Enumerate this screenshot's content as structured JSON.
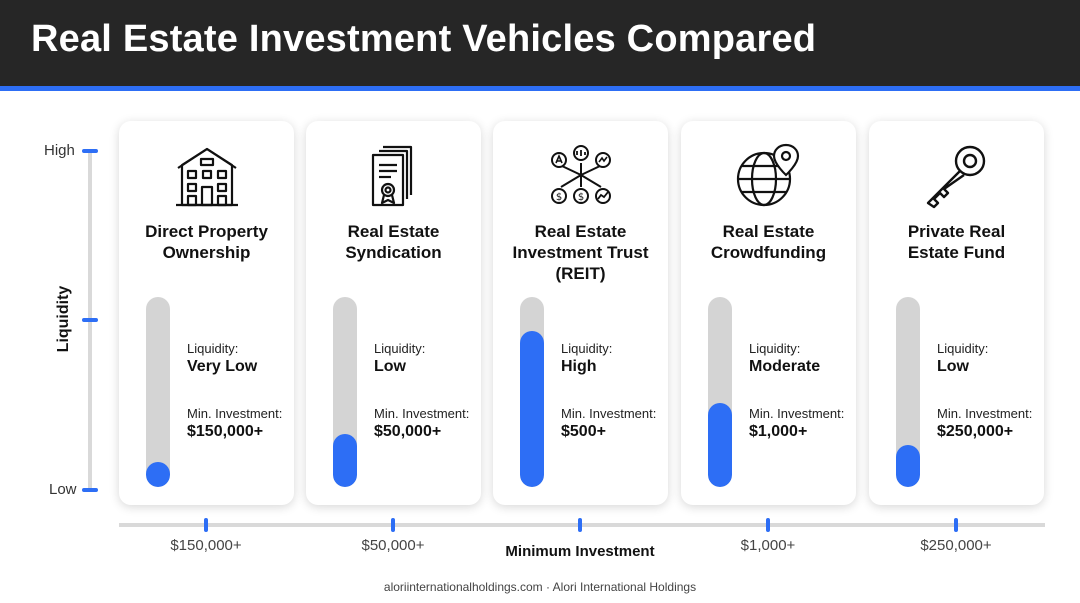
{
  "header": {
    "title": "Real Estate Investment Vehicles Compared"
  },
  "chart_data": {
    "type": "bar",
    "title": "Real Estate Investment Vehicles Compared",
    "ylabel": "Liquidity",
    "xlabel": "Minimum Investment",
    "y_ticks": [
      "High",
      "Low"
    ],
    "ylim": [
      0,
      1
    ],
    "categories": [
      "Direct Property Ownership",
      "Real Estate Syndication",
      "Real Estate Investment Trust (REIT)",
      "Real Estate Crowdfunding",
      "Private Real Estate Fund"
    ],
    "x_tick_labels": [
      "$150,000+",
      "$50,000+",
      "",
      "$1,000+",
      "$250,000+"
    ],
    "values": [
      0.13,
      0.28,
      0.82,
      0.44,
      0.22
    ],
    "items": [
      {
        "title_lines": [
          "Direct Property",
          "Ownership"
        ],
        "icon": "building-icon",
        "liquidity_label": "Liquidity:",
        "liquidity": "Very Low",
        "min_label": "Min. Investment:",
        "min_investment": "$150,000+",
        "fill": 0.13
      },
      {
        "title_lines": [
          "Real Estate",
          "Syndication"
        ],
        "icon": "contract-icon",
        "liquidity_label": "Liquidity:",
        "liquidity": "Low",
        "min_label": "Min. Investment:",
        "min_investment": "$50,000+",
        "fill": 0.28
      },
      {
        "title_lines": [
          "Real Estate",
          "Investment Trust",
          "(REIT)"
        ],
        "icon": "network-icon",
        "liquidity_label": "Liquidity:",
        "liquidity": "High",
        "min_label": "Min. Investment:",
        "min_investment": "$500+",
        "fill": 0.82
      },
      {
        "title_lines": [
          "Real Estate",
          "Crowdfunding"
        ],
        "icon": "globe-pin-icon",
        "liquidity_label": "Liquidity:",
        "liquidity": "Moderate",
        "min_label": "Min. Investment:",
        "min_investment": "$1,000+",
        "fill": 0.44
      },
      {
        "title_lines": [
          "Private Real",
          "Estate Fund"
        ],
        "icon": "key-icon",
        "liquidity_label": "Liquidity:",
        "liquidity": "Low",
        "min_label": "Min. Investment:",
        "min_investment": "$250,000+",
        "fill": 0.22
      }
    ],
    "colors": {
      "accent": "#2d6ef5",
      "track": "#d4d4d4",
      "header": "#262626"
    }
  },
  "footer": {
    "text": "aloriinternationalholdings.com · Alori International Holdings"
  }
}
